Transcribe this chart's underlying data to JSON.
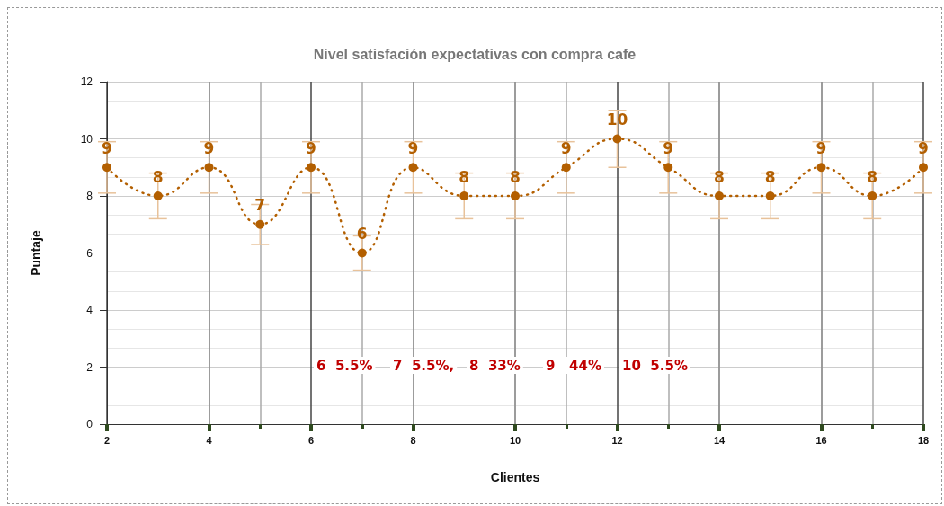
{
  "chart_data": {
    "type": "line",
    "title": "Nivel satisfación expectativas con compra cafe",
    "xlabel": "Clientes",
    "ylabel": "Puntaje",
    "x": [
      2,
      3,
      4,
      5,
      6,
      7,
      8,
      9,
      10,
      11,
      12,
      13,
      14,
      15,
      16,
      17,
      18
    ],
    "series": [
      {
        "color": "#b35f00",
        "values": [
          9,
          8,
          9,
          7,
          9,
          6,
          9,
          8,
          8,
          9,
          10,
          9,
          8,
          8,
          9,
          8,
          9
        ],
        "errors": [
          0.9,
          0.8,
          0.9,
          0.7,
          0.9,
          0.6,
          0.9,
          0.8,
          0.8,
          0.9,
          1,
          0.9,
          0.8,
          0.8,
          0.9,
          0.8,
          0.9
        ]
      }
    ],
    "xlim": [
      2,
      18
    ],
    "xticks": [
      2,
      4,
      6,
      8,
      10,
      12,
      14,
      16,
      18
    ],
    "ylim": [
      0,
      12
    ],
    "yticks": [
      0,
      2,
      4,
      6,
      8,
      10,
      12
    ],
    "annotations": [
      "6  5.5%",
      "7  5.5%,",
      "8  33%",
      "9   44%",
      "10  5.5%"
    ],
    "data_labels": true,
    "grid": true,
    "marker": "circle",
    "line_style": "dotted"
  }
}
